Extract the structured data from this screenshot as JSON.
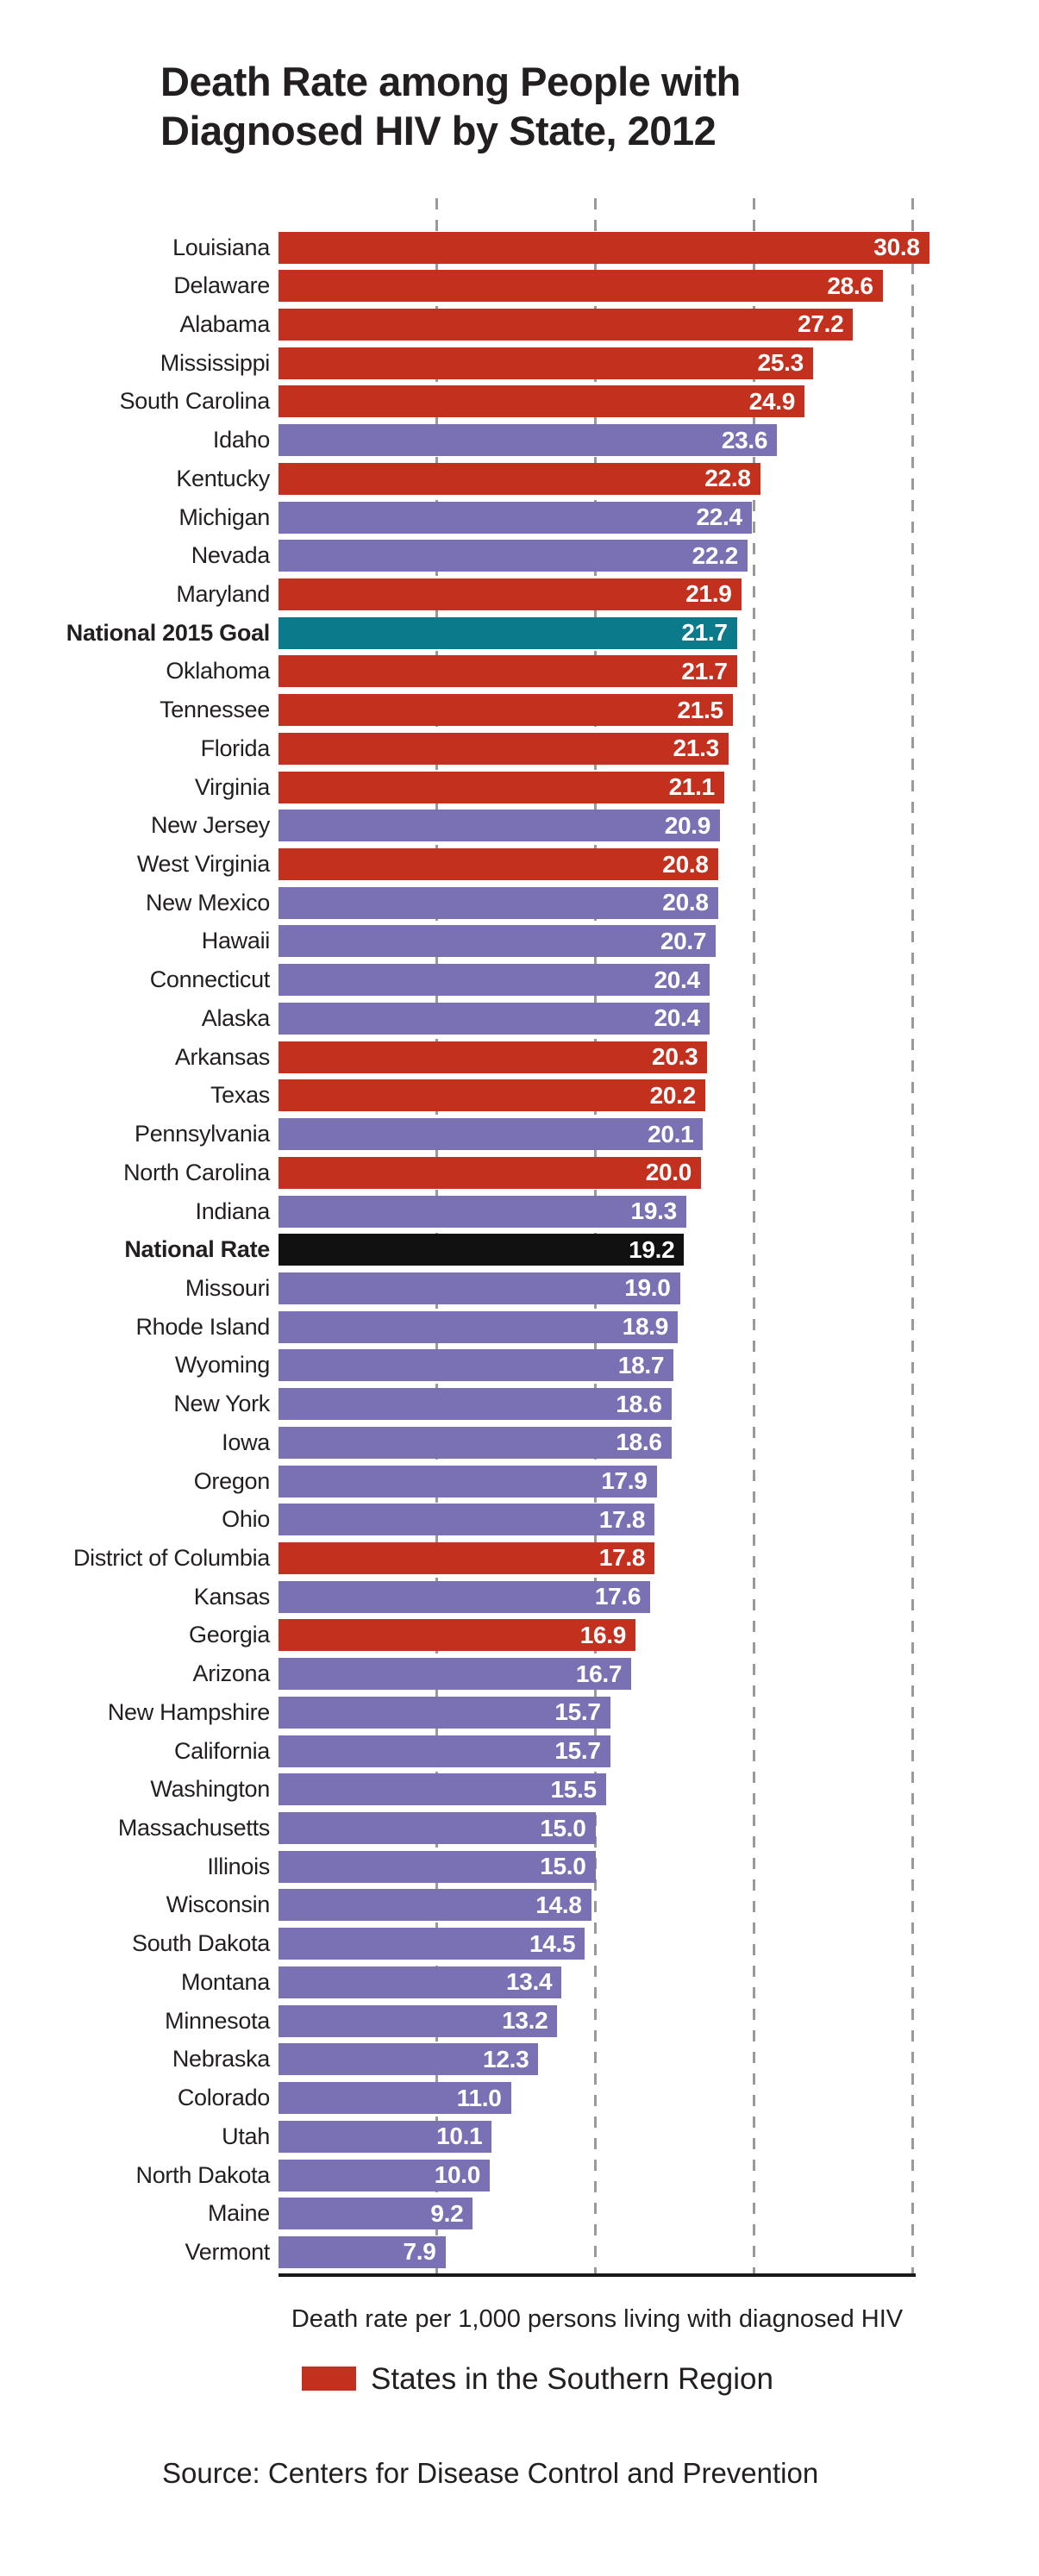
{
  "title": {
    "line1": "Death Rate among People with",
    "line2": "Diagnosed HIV by State, 2012"
  },
  "legend": {
    "label": "States in the Southern Region",
    "swatch_color": "#C4301E"
  },
  "source": "Source: Centers for Disease Control and Prevention",
  "chart_data": {
    "type": "bar",
    "orientation": "horizontal",
    "title": "Death Rate among People with Diagnosed HIV by State, 2012",
    "xlabel": "Death rate per 1,000 persons living with diagnosed HIV",
    "ylabel": "",
    "xlim": [
      0,
      30.8
    ],
    "gridlines": [
      7.5,
      15,
      22.5,
      30
    ],
    "grid_style": "dashed-vertical",
    "legend_position": "bottom",
    "colors": {
      "southern": "#C4301E",
      "other": "#7A71B4",
      "goal": "#0B7A8A",
      "national": "#111111"
    },
    "rows": [
      {
        "label": "Louisiana",
        "value": "30.8",
        "cat": "southern"
      },
      {
        "label": "Delaware",
        "value": "28.6",
        "cat": "southern"
      },
      {
        "label": "Alabama",
        "value": "27.2",
        "cat": "southern"
      },
      {
        "label": "Mississippi",
        "value": "25.3",
        "cat": "southern"
      },
      {
        "label": "South Carolina",
        "value": "24.9",
        "cat": "southern"
      },
      {
        "label": "Idaho",
        "value": "23.6",
        "cat": "other"
      },
      {
        "label": "Kentucky",
        "value": "22.8",
        "cat": "southern"
      },
      {
        "label": "Michigan",
        "value": "22.4",
        "cat": "other"
      },
      {
        "label": "Nevada",
        "value": "22.2",
        "cat": "other"
      },
      {
        "label": "Maryland",
        "value": "21.9",
        "cat": "southern"
      },
      {
        "label": "National 2015 Goal",
        "value": "21.7",
        "cat": "goal"
      },
      {
        "label": "Oklahoma",
        "value": "21.7",
        "cat": "southern"
      },
      {
        "label": "Tennessee",
        "value": "21.5",
        "cat": "southern"
      },
      {
        "label": "Florida",
        "value": "21.3",
        "cat": "southern"
      },
      {
        "label": "Virginia",
        "value": "21.1",
        "cat": "southern"
      },
      {
        "label": "New Jersey",
        "value": "20.9",
        "cat": "other"
      },
      {
        "label": "West Virginia",
        "value": "20.8",
        "cat": "southern"
      },
      {
        "label": "New Mexico",
        "value": "20.8",
        "cat": "other"
      },
      {
        "label": "Hawaii",
        "value": "20.7",
        "cat": "other"
      },
      {
        "label": "Connecticut",
        "value": "20.4",
        "cat": "other"
      },
      {
        "label": "Alaska",
        "value": "20.4",
        "cat": "other"
      },
      {
        "label": "Arkansas",
        "value": "20.3",
        "cat": "southern"
      },
      {
        "label": "Texas",
        "value": "20.2",
        "cat": "southern"
      },
      {
        "label": "Pennsylvania",
        "value": "20.1",
        "cat": "other"
      },
      {
        "label": "North Carolina",
        "value": "20.0",
        "cat": "southern"
      },
      {
        "label": "Indiana",
        "value": "19.3",
        "cat": "other"
      },
      {
        "label": "National Rate",
        "value": "19.2",
        "cat": "national"
      },
      {
        "label": "Missouri",
        "value": "19.0",
        "cat": "other"
      },
      {
        "label": "Rhode Island",
        "value": "18.9",
        "cat": "other"
      },
      {
        "label": "Wyoming",
        "value": "18.7",
        "cat": "other"
      },
      {
        "label": "New York",
        "value": "18.6",
        "cat": "other"
      },
      {
        "label": "Iowa",
        "value": "18.6",
        "cat": "other"
      },
      {
        "label": "Oregon",
        "value": "17.9",
        "cat": "other"
      },
      {
        "label": "Ohio",
        "value": "17.8",
        "cat": "other"
      },
      {
        "label": "District of Columbia",
        "value": "17.8",
        "cat": "southern"
      },
      {
        "label": "Kansas",
        "value": "17.6",
        "cat": "other"
      },
      {
        "label": "Georgia",
        "value": "16.9",
        "cat": "southern"
      },
      {
        "label": "Arizona",
        "value": "16.7",
        "cat": "other"
      },
      {
        "label": "New Hampshire",
        "value": "15.7",
        "cat": "other"
      },
      {
        "label": "California",
        "value": "15.7",
        "cat": "other"
      },
      {
        "label": "Washington",
        "value": "15.5",
        "cat": "other"
      },
      {
        "label": "Massachusetts",
        "value": "15.0",
        "cat": "other"
      },
      {
        "label": "Illinois",
        "value": "15.0",
        "cat": "other"
      },
      {
        "label": "Wisconsin",
        "value": "14.8",
        "cat": "other"
      },
      {
        "label": "South Dakota",
        "value": "14.5",
        "cat": "other"
      },
      {
        "label": "Montana",
        "value": "13.4",
        "cat": "other"
      },
      {
        "label": "Minnesota",
        "value": "13.2",
        "cat": "other"
      },
      {
        "label": "Nebraska",
        "value": "12.3",
        "cat": "other"
      },
      {
        "label": "Colorado",
        "value": "11.0",
        "cat": "other"
      },
      {
        "label": "Utah",
        "value": "10.1",
        "cat": "other"
      },
      {
        "label": "North Dakota",
        "value": "10.0",
        "cat": "other"
      },
      {
        "label": "Maine",
        "value": "9.2",
        "cat": "other"
      },
      {
        "label": "Vermont",
        "value": "7.9",
        "cat": "other"
      }
    ]
  }
}
